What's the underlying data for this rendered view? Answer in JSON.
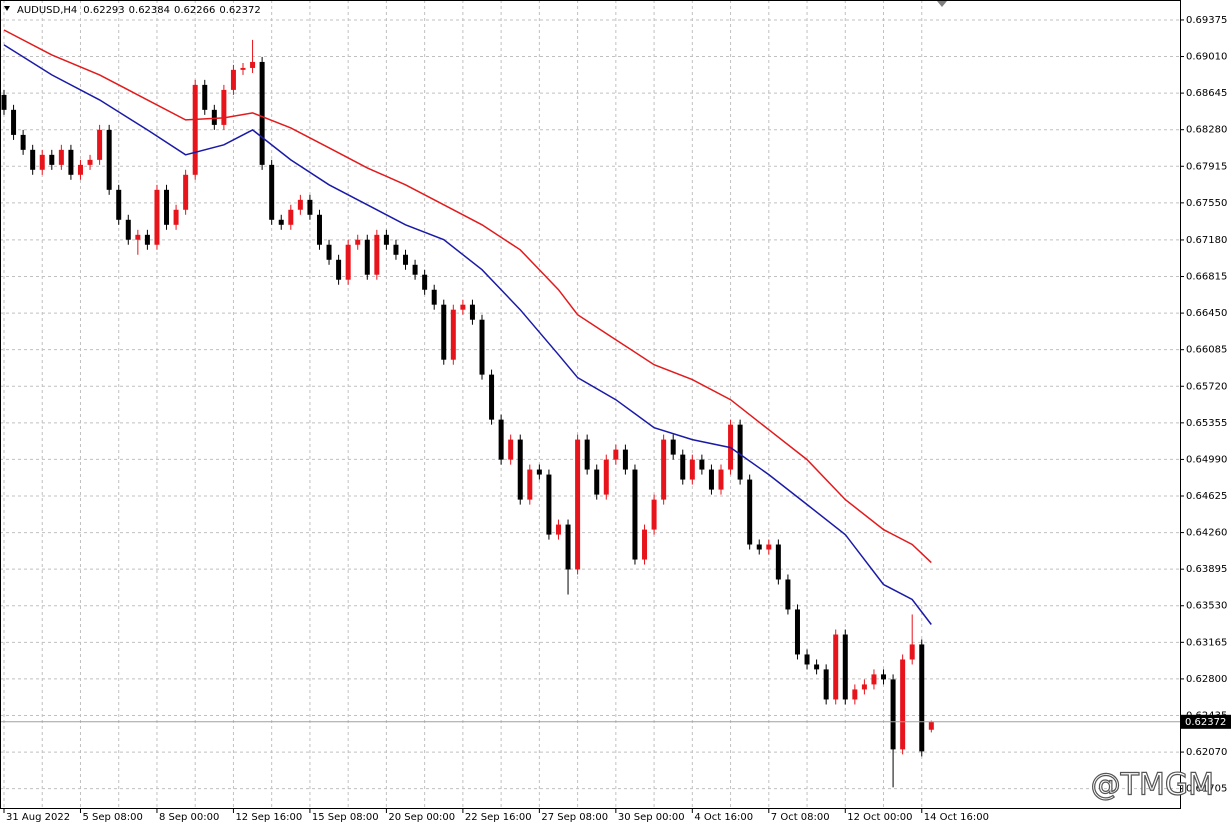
{
  "chart_data": {
    "type": "candlestick",
    "symbol": "AUDUSD,H4",
    "watermark": "@TMGM",
    "up_color": "#e8141c",
    "down_color": "#000000",
    "grid": true,
    "categories": [
      "31 Aug 2022",
      null,
      null,
      null,
      null,
      null,
      null,
      null,
      "5 Sep 08:00",
      null,
      null,
      null,
      null,
      null,
      null,
      null,
      "8 Sep 00:00",
      null,
      null,
      null,
      null,
      null,
      null,
      null,
      "12 Sep 16:00",
      null,
      null,
      null,
      null,
      null,
      null,
      null,
      "15 Sep 08:00",
      null,
      null,
      null,
      null,
      null,
      null,
      null,
      "20 Sep 00:00",
      null,
      null,
      null,
      null,
      null,
      null,
      null,
      "22 Sep 16:00",
      null,
      null,
      null,
      null,
      null,
      null,
      null,
      "27 Sep 08:00",
      null,
      null,
      null,
      null,
      null,
      null,
      null,
      "30 Sep 00:00",
      null,
      null,
      null,
      null,
      null,
      null,
      null,
      "4 Oct 16:00",
      null,
      null,
      null,
      null,
      null,
      null,
      null,
      "7 Oct 08:00",
      null,
      null,
      null,
      null,
      null,
      null,
      null,
      "12 Oct 00:00",
      null,
      null,
      null,
      null,
      null,
      null,
      null,
      "14 Oct 16:00",
      null
    ],
    "open": [
      0.68627,
      0.68478,
      0.68228,
      0.68079,
      0.6788,
      0.68029,
      0.67929,
      0.68079,
      0.6783,
      0.67929,
      0.67979,
      0.68278,
      0.6768,
      0.67381,
      0.67182,
      0.67231,
      0.67132,
      0.6768,
      0.67331,
      0.67481,
      0.6783,
      0.68727,
      0.68478,
      0.68328,
      0.68677,
      0.68877,
      0.68896,
      0.68956,
      0.67929,
      0.67381,
      0.67331,
      0.67481,
      0.6758,
      0.67431,
      0.67132,
      0.66982,
      0.66783,
      0.67132,
      0.67182,
      0.66833,
      0.67231,
      0.67132,
      0.67032,
      0.66932,
      0.66833,
      0.66683,
      0.66534,
      0.65985,
      0.66484,
      0.66534,
      0.66384,
      0.65836,
      0.65387,
      0.64988,
      0.65188,
      0.64589,
      0.64889,
      0.64839,
      0.6424,
      0.6434,
      0.63892,
      0.65188,
      0.64889,
      0.64639,
      0.64988,
      0.65088,
      0.64889,
      0.63991,
      0.6429,
      0.64589,
      0.65188,
      0.65038,
      0.64789,
      0.64988,
      0.64889,
      0.64689,
      0.64889,
      0.65337,
      0.64789,
      0.64141,
      0.64091,
      0.64141,
      0.63792,
      0.63493,
      0.63044,
      0.62944,
      0.62895,
      0.62595,
      0.63243,
      0.62595,
      0.62695,
      0.62745,
      0.62845,
      0.62795,
      0.62097,
      0.62994,
      0.63144,
      0.62293
    ],
    "high": [
      0.68677,
      0.68528,
      0.68278,
      0.68129,
      0.68079,
      0.68079,
      0.68129,
      0.68129,
      0.67979,
      0.68029,
      0.68328,
      0.68328,
      0.6773,
      0.67431,
      0.67281,
      0.67281,
      0.6773,
      0.6773,
      0.67531,
      0.6788,
      0.68777,
      0.68777,
      0.68528,
      0.68727,
      0.68927,
      0.68946,
      0.69176,
      0.69006,
      0.67979,
      0.67431,
      0.67531,
      0.6763,
      0.6763,
      0.67481,
      0.67182,
      0.67032,
      0.67182,
      0.67232,
      0.67232,
      0.67281,
      0.67281,
      0.67182,
      0.67082,
      0.66982,
      0.66883,
      0.66733,
      0.66584,
      0.66534,
      0.66584,
      0.66584,
      0.66434,
      0.65886,
      0.65437,
      0.65238,
      0.65238,
      0.64939,
      0.64939,
      0.64889,
      0.6439,
      0.6439,
      0.65238,
      0.65238,
      0.64939,
      0.65038,
      0.65138,
      0.65138,
      0.64939,
      0.6434,
      0.64639,
      0.65238,
      0.65238,
      0.65088,
      0.65038,
      0.65038,
      0.64939,
      0.64939,
      0.65387,
      0.65387,
      0.64839,
      0.64191,
      0.64191,
      0.64191,
      0.63842,
      0.63543,
      0.63094,
      0.62994,
      0.62945,
      0.63293,
      0.63293,
      0.62745,
      0.62795,
      0.62895,
      0.62895,
      0.62845,
      0.63044,
      0.63443,
      0.63194,
      0.62384
    ],
    "low": [
      0.68428,
      0.68178,
      0.68029,
      0.6783,
      0.6783,
      0.67879,
      0.67879,
      0.6778,
      0.6778,
      0.67879,
      0.67929,
      0.6763,
      0.67331,
      0.67132,
      0.67032,
      0.67082,
      0.67082,
      0.67281,
      0.67281,
      0.67431,
      0.6778,
      0.68428,
      0.68278,
      0.68278,
      0.68627,
      0.68827,
      0.68846,
      0.67879,
      0.67331,
      0.67281,
      0.67281,
      0.67431,
      0.67381,
      0.67082,
      0.66932,
      0.66733,
      0.66733,
      0.67082,
      0.66783,
      0.66783,
      0.67082,
      0.66982,
      0.66882,
      0.66783,
      0.66633,
      0.66484,
      0.65935,
      0.65935,
      0.66434,
      0.66334,
      0.65786,
      0.65337,
      0.64938,
      0.64938,
      0.64539,
      0.64539,
      0.64789,
      0.6419,
      0.6419,
      0.63642,
      0.63842,
      0.64839,
      0.64589,
      0.64589,
      0.64938,
      0.64839,
      0.63941,
      0.63941,
      0.6424,
      0.64539,
      0.64988,
      0.64739,
      0.64739,
      0.64839,
      0.64639,
      0.64639,
      0.64839,
      0.64739,
      0.64091,
      0.64041,
      0.64041,
      0.63742,
      0.63443,
      0.62994,
      0.62894,
      0.62845,
      0.62545,
      0.62545,
      0.62545,
      0.62545,
      0.62645,
      0.62695,
      0.62745,
      0.61718,
      0.62047,
      0.62944,
      0.62027,
      0.62266
    ],
    "close": [
      0.68478,
      0.68228,
      0.68079,
      0.6788,
      0.68029,
      0.67929,
      0.68079,
      0.6783,
      0.67929,
      0.67979,
      0.68278,
      0.6768,
      0.67381,
      0.67182,
      0.67231,
      0.67132,
      0.6768,
      0.67331,
      0.67481,
      0.6783,
      0.68727,
      0.68478,
      0.68328,
      0.68677,
      0.68877,
      0.68896,
      0.68956,
      0.67929,
      0.67381,
      0.67331,
      0.67481,
      0.6758,
      0.67431,
      0.67132,
      0.66982,
      0.66783,
      0.67132,
      0.67182,
      0.66833,
      0.67231,
      0.67132,
      0.67032,
      0.66932,
      0.66833,
      0.66683,
      0.66534,
      0.65985,
      0.66484,
      0.66534,
      0.66384,
      0.65836,
      0.65387,
      0.64988,
      0.65188,
      0.64589,
      0.64889,
      0.64839,
      0.6424,
      0.6434,
      0.63892,
      0.65188,
      0.64889,
      0.64639,
      0.64988,
      0.65088,
      0.64889,
      0.63991,
      0.6429,
      0.64589,
      0.65188,
      0.65038,
      0.64789,
      0.64988,
      0.64889,
      0.64689,
      0.64889,
      0.65337,
      0.64789,
      0.64141,
      0.64091,
      0.64141,
      0.63792,
      0.63493,
      0.63044,
      0.62944,
      0.62895,
      0.62595,
      0.63243,
      0.62595,
      0.62695,
      0.62745,
      0.62845,
      0.62795,
      0.62097,
      0.62994,
      0.63144,
      0.62077,
      0.62372
    ],
    "series": [
      {
        "color": "#e31a1c",
        "x": [
          0,
          5,
          10,
          15,
          19,
          23,
          26,
          30,
          34,
          38,
          42,
          46,
          50,
          54,
          58,
          60,
          64,
          68,
          72,
          76,
          80,
          84,
          88,
          92,
          95,
          97
        ],
        "values": [
          0.69275,
          0.69026,
          0.68827,
          0.68577,
          0.68378,
          0.68398,
          0.68448,
          0.68298,
          0.68099,
          0.67899,
          0.6773,
          0.67531,
          0.67331,
          0.67082,
          0.66683,
          0.66434,
          0.66185,
          0.65935,
          0.65786,
          0.65586,
          0.65287,
          0.64988,
          0.64589,
          0.6429,
          0.64141,
          0.63961
        ]
      },
      {
        "color": "#1a1aa8",
        "x": [
          0,
          5,
          10,
          15,
          19,
          23,
          26,
          30,
          34,
          38,
          42,
          46,
          50,
          54,
          58,
          60,
          64,
          68,
          72,
          76,
          80,
          84,
          88,
          92,
          95,
          97
        ],
        "values": [
          0.69126,
          0.68827,
          0.68577,
          0.68278,
          0.68029,
          0.68129,
          0.68278,
          0.67979,
          0.6773,
          0.67531,
          0.67331,
          0.67182,
          0.66883,
          0.66484,
          0.66035,
          0.65806,
          0.65586,
          0.65307,
          0.65188,
          0.65108,
          0.64839,
          0.6454,
          0.6424,
          0.63742,
          0.63592,
          0.63343
        ]
      }
    ],
    "ylim": [
      0.61512,
      0.69574
    ],
    "yticks": [
      0.69375,
      {
        "value": 0.6901,
        "label": "0.69010"
      },
      0.68645,
      {
        "value": 0.6828,
        "label": "0.68280"
      },
      0.67915,
      {
        "value": 0.6755,
        "label": "0.67550"
      },
      {
        "value": 0.6718,
        "label": "0.67180"
      },
      0.66815,
      {
        "value": 0.6645,
        "label": "0.66450"
      },
      0.66085,
      {
        "value": 0.6572,
        "label": "0.65720"
      },
      0.65355,
      {
        "value": 0.6499,
        "label": "0.64990"
      },
      0.64625,
      {
        "value": 0.6426,
        "label": "0.64260"
      },
      0.63895,
      {
        "value": 0.6353,
        "label": "0.63530"
      },
      0.63165,
      {
        "value": 0.628,
        "label": "0.62800"
      },
      0.62435,
      {
        "value": 0.6207,
        "label": "0.62070"
      },
      0.61705
    ]
  }
}
